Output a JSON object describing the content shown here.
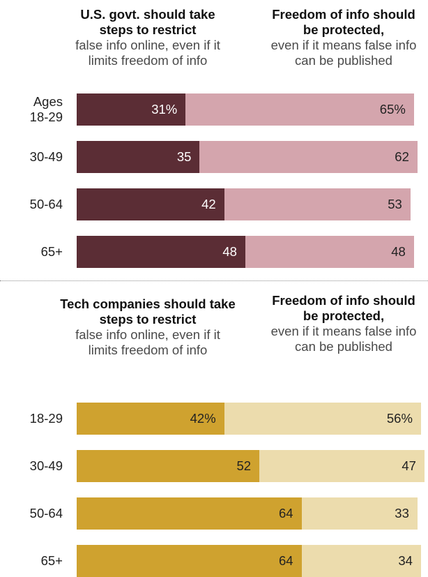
{
  "chart_data": [
    {
      "type": "bar",
      "stacked": true,
      "orientation": "horizontal",
      "header_left": {
        "bold": "U.S. govt. should take steps to restrict",
        "normal": "false info online, even if it limits freedom of info"
      },
      "header_right": {
        "bold": "Freedom of info should be protected",
        "bold_suffix": ",",
        "normal": "even if it means false info can be published"
      },
      "row_prefix": "Ages",
      "categories": [
        "18-29",
        "30-49",
        "50-64",
        "65+"
      ],
      "series": [
        {
          "values": [
            31,
            35,
            42,
            48
          ],
          "labels": [
            "31%",
            "35",
            "42",
            "48"
          ],
          "color": "#5b2d35",
          "text_color": "#ffffff"
        },
        {
          "values": [
            65,
            62,
            53,
            48
          ],
          "labels": [
            "65%",
            "62",
            "53",
            "48"
          ],
          "color": "#d4a5ad",
          "text_color": "#222222"
        }
      ]
    },
    {
      "type": "bar",
      "stacked": true,
      "orientation": "horizontal",
      "header_left": {
        "bold": "Tech companies should take steps to restrict",
        "normal": "false info online, even if it limits freedom of info"
      },
      "header_right": {
        "bold": "Freedom of info should be protected",
        "bold_suffix": ",",
        "normal": "even if it means false info can be published"
      },
      "row_prefix": "",
      "categories": [
        "18-29",
        "30-49",
        "50-64",
        "65+"
      ],
      "series": [
        {
          "values": [
            42,
            52,
            64,
            64
          ],
          "labels": [
            "42%",
            "52",
            "64",
            "64"
          ],
          "color": "#cfa22f",
          "text_color": "#222222"
        },
        {
          "values": [
            56,
            47,
            33,
            34
          ],
          "labels": [
            "56%",
            "47",
            "33",
            "34"
          ],
          "color": "#ecdcad",
          "text_color": "#222222"
        }
      ]
    }
  ]
}
